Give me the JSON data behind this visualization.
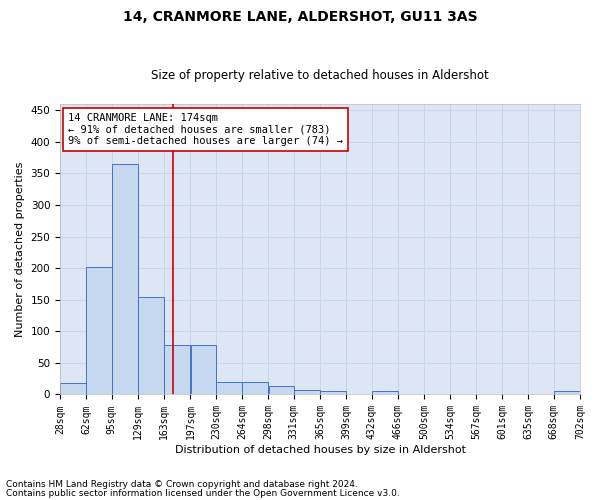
{
  "title": "14, CRANMORE LANE, ALDERSHOT, GU11 3AS",
  "subtitle": "Size of property relative to detached houses in Aldershot",
  "xlabel": "Distribution of detached houses by size in Aldershot",
  "ylabel": "Number of detached properties",
  "footnote1": "Contains HM Land Registry data © Crown copyright and database right 2024.",
  "footnote2": "Contains public sector information licensed under the Open Government Licence v3.0.",
  "annotation_line1": "14 CRANMORE LANE: 174sqm",
  "annotation_line2": "← 91% of detached houses are smaller (783)",
  "annotation_line3": "9% of semi-detached houses are larger (74) →",
  "property_size": 174,
  "bin_edges": [
    28,
    62,
    95,
    129,
    163,
    197,
    230,
    264,
    298,
    331,
    365,
    399,
    432,
    466,
    500,
    534,
    567,
    601,
    635,
    668,
    702
  ],
  "bin_counts": [
    18,
    202,
    365,
    155,
    78,
    78,
    20,
    20,
    14,
    7,
    5,
    0,
    5,
    0,
    0,
    0,
    0,
    0,
    0,
    5
  ],
  "bar_color": "#c5d8f0",
  "bar_edge_color": "#4472c4",
  "vline_color": "#cc0000",
  "vline_x": 174,
  "annotation_box_color": "#cc0000",
  "grid_color": "#c8d4e8",
  "background_color": "#dde6f5",
  "ylim": [
    0,
    460
  ],
  "yticks": [
    0,
    50,
    100,
    150,
    200,
    250,
    300,
    350,
    400,
    450
  ],
  "title_fontsize": 10,
  "subtitle_fontsize": 8.5,
  "axis_label_fontsize": 8,
  "tick_fontsize": 7,
  "annotation_fontsize": 7.5,
  "footnote_fontsize": 6.5
}
